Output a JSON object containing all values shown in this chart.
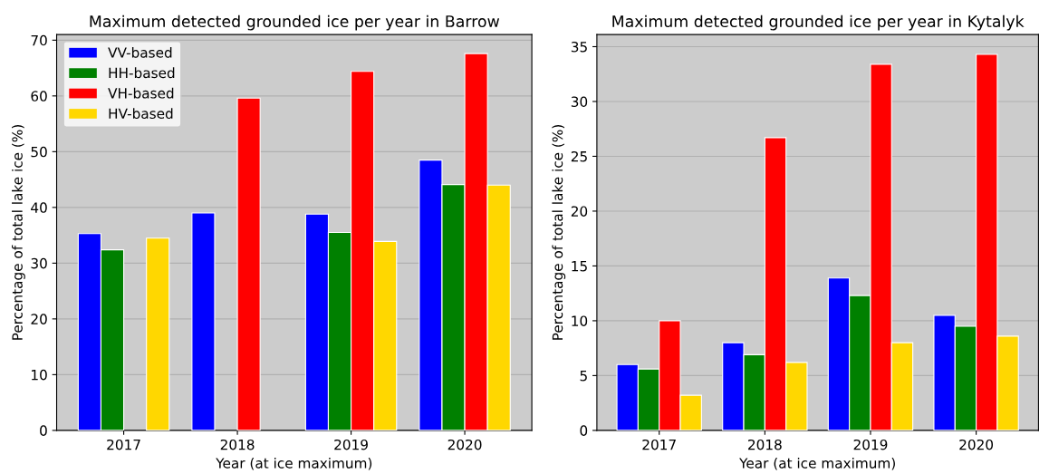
{
  "chart_data": [
    {
      "type": "bar",
      "title": "Maximum detected grounded ice per year in Barrow",
      "xlabel": "Year (at ice maximum)",
      "ylabel": "Percentage of total lake ice (%)",
      "categories": [
        "2017",
        "2018",
        "2019",
        "2020"
      ],
      "series": [
        {
          "name": "VV-based",
          "color": "#0000ff",
          "values": [
            35.3,
            39.0,
            38.8,
            48.5
          ]
        },
        {
          "name": "HH-based",
          "color": "#008000",
          "values": [
            32.4,
            null,
            35.5,
            44.1
          ]
        },
        {
          "name": "VH-based",
          "color": "#ff0000",
          "values": [
            null,
            59.6,
            64.4,
            67.6
          ]
        },
        {
          "name": "HV-based",
          "color": "#ffd700",
          "values": [
            34.5,
            null,
            33.9,
            44.0
          ]
        }
      ],
      "ylim": [
        0,
        71
      ],
      "yticks": [
        0,
        10,
        20,
        30,
        40,
        50,
        60,
        70
      ],
      "grid": "y",
      "legend": "top left"
    },
    {
      "type": "bar",
      "title": "Maximum detected grounded ice per year in Kytalyk",
      "xlabel": "Year (at ice maximum)",
      "ylabel": "Percentage of total lake ice (%)",
      "categories": [
        "2017",
        "2018",
        "2019",
        "2020"
      ],
      "series": [
        {
          "color": "#0000ff",
          "values": [
            6.0,
            8.0,
            13.9,
            10.5
          ]
        },
        {
          "color": "#008000",
          "values": [
            5.6,
            6.9,
            12.3,
            9.5
          ]
        },
        {
          "color": "#ff0000",
          "values": [
            10.0,
            26.7,
            33.4,
            34.3
          ]
        },
        {
          "color": "#ffd700",
          "values": [
            3.2,
            6.2,
            8.0,
            8.6
          ]
        }
      ],
      "ylim": [
        0,
        36.1
      ],
      "yticks": [
        0,
        5,
        10,
        15,
        20,
        25,
        30,
        35
      ],
      "grid": "y",
      "legend": false
    }
  ]
}
